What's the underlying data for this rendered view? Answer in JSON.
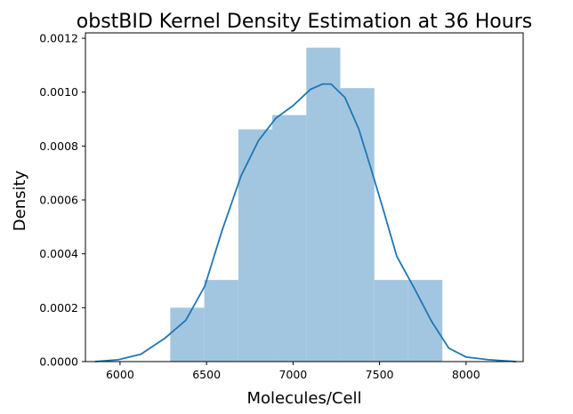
{
  "chart_data": {
    "type": "bar",
    "title": "obstBID Kernel Density Estimation at 36 Hours",
    "xlabel": "Molecules/Cell",
    "ylabel": "Density",
    "xlim": [
      5800,
      8330
    ],
    "ylim": [
      0,
      0.00122
    ],
    "x_ticks": [
      6000,
      6500,
      7000,
      7500,
      8000
    ],
    "y_ticks": [
      "0.0000",
      "0.0002",
      "0.0004",
      "0.0006",
      "0.0008",
      "0.0010",
      "0.0012"
    ],
    "y_tick_values": [
      0,
      0.0002,
      0.0004,
      0.0006,
      0.0008,
      0.001,
      0.0012
    ],
    "histogram": {
      "color": "#a3c6e0",
      "bins": [
        {
          "x0": 6290,
          "x1": 6487,
          "density": 0.0002
        },
        {
          "x0": 6487,
          "x1": 6684,
          "density": 0.000303
        },
        {
          "x0": 6684,
          "x1": 6880,
          "density": 0.000862
        },
        {
          "x0": 6880,
          "x1": 7077,
          "density": 0.000915
        },
        {
          "x0": 7077,
          "x1": 7273,
          "density": 0.001165
        },
        {
          "x0": 7273,
          "x1": 7470,
          "density": 0.001015
        },
        {
          "x0": 7470,
          "x1": 7666,
          "density": 0.000303
        },
        {
          "x0": 7666,
          "x1": 7863,
          "density": 0.000303
        }
      ]
    },
    "kde": {
      "color": "#1f77b4",
      "x": [
        5855,
        5990,
        6120,
        6260,
        6380,
        6490,
        6590,
        6700,
        6800,
        6900,
        7000,
        7100,
        7170,
        7220,
        7300,
        7380,
        7450,
        7520,
        7600,
        7700,
        7800,
        7900,
        8000,
        8130,
        8290
      ],
      "y": [
        0.0,
        7e-06,
        2.7e-05,
        8.7e-05,
        0.000153,
        0.00028,
        0.000487,
        0.00069,
        0.00082,
        0.000903,
        0.00095,
        0.00101,
        0.00103,
        0.00103,
        0.00098,
        0.000863,
        0.000717,
        0.000567,
        0.00039,
        0.000273,
        0.00015,
        5e-05,
        1.7e-05,
        7e-06,
        0.0
      ]
    }
  }
}
